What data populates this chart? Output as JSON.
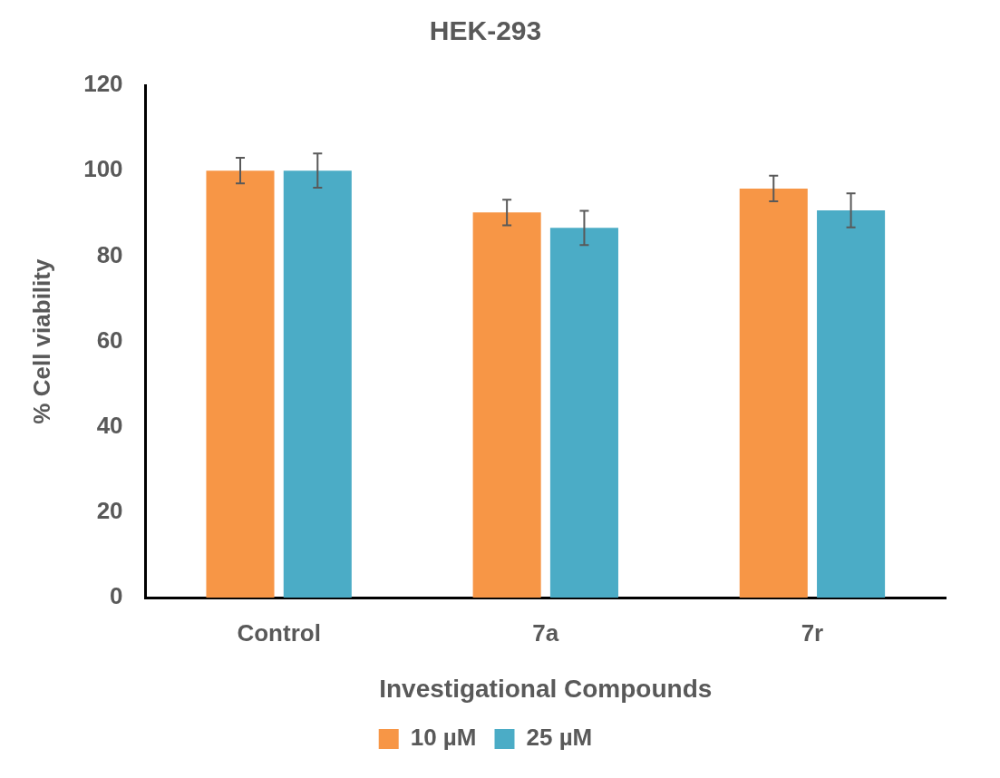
{
  "chart_data": {
    "type": "bar",
    "title": "HEK-293",
    "xlabel": "Investigational Compounds",
    "ylabel": "% Cell viability",
    "categories": [
      "Control",
      "7a",
      "7r"
    ],
    "series": [
      {
        "name": "10 µM",
        "color": "#f79646",
        "values": [
          100,
          90.2,
          95.8
        ],
        "errors": [
          3,
          3,
          3
        ]
      },
      {
        "name": "25 µM",
        "color": "#4bacc6",
        "values": [
          100,
          86.6,
          90.7
        ],
        "errors": [
          4,
          4,
          4
        ]
      }
    ],
    "ylim": [
      0,
      120
    ],
    "yticks": [
      0,
      20,
      40,
      60,
      80,
      100,
      120
    ],
    "grid": false,
    "legend": "bottom"
  }
}
